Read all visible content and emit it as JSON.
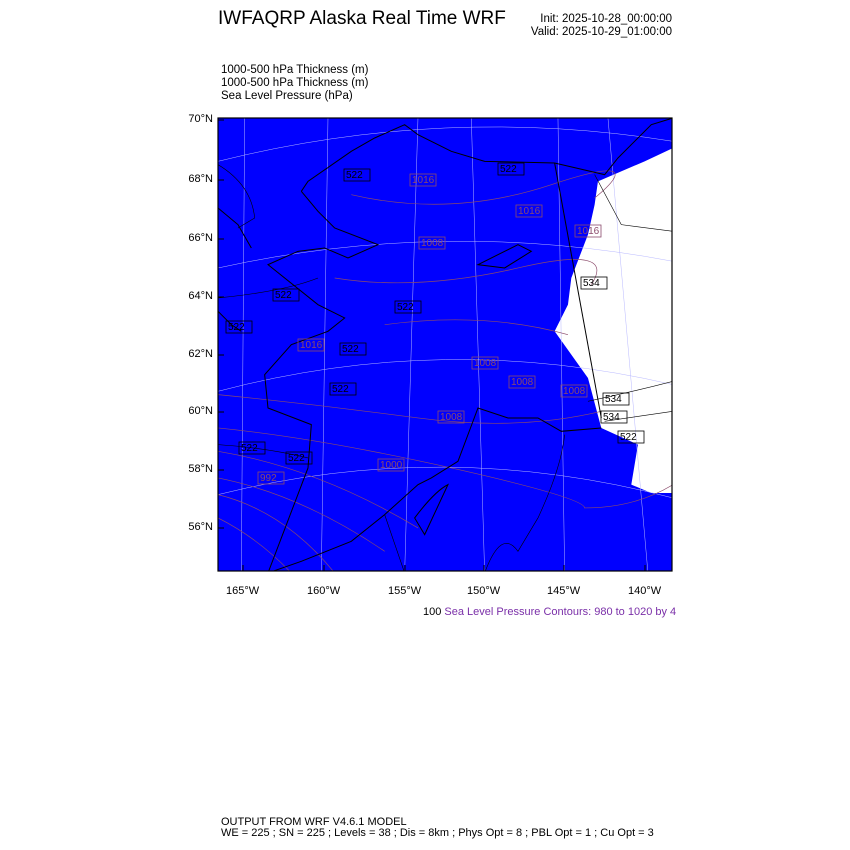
{
  "header": {
    "title": "IWFAQRP Alaska Real Time WRF",
    "init": "Init: 2025-10-28_00:00:00",
    "valid": "Valid: 2025-10-29_01:00:00"
  },
  "fields": [
    "1000-500 hPa Thickness   (m)",
    "1000-500 hPa Thickness   (m)",
    "Sea Level Pressure   (hPa)"
  ],
  "map": {
    "lat_ticks": [
      "70°N",
      "68°N",
      "66°N",
      "64°N",
      "62°N",
      "60°N",
      "58°N",
      "56°N"
    ],
    "lon_ticks": [
      "165°W",
      "160°W",
      "155°W",
      "150°W",
      "145°W",
      "140°W"
    ],
    "colors": {
      "fill": "#0000ff",
      "snow_free": "#ffffff",
      "slp_contour": "#8b4a6b",
      "thickness_contour": "#000000",
      "purple": "#7a2fa8"
    },
    "slp_labels": [
      "1016",
      "1016",
      "1016",
      "1008",
      "1016",
      "1008",
      "1008",
      "1008",
      "1008",
      "1000",
      "992"
    ],
    "thickness_labels": [
      "522",
      "522",
      "522",
      "522",
      "522",
      "522",
      "522",
      "522",
      "522",
      "522",
      "534",
      "534",
      "534"
    ]
  },
  "contour_info": {
    "min_label": "100",
    "text": "Sea Level Pressure Contours: 980 to 1020 by 4"
  },
  "footer": {
    "line1": "OUTPUT FROM WRF V4.6.1 MODEL",
    "line2": "WE = 225 ; SN = 225 ; Levels = 38 ; Dis = 8km ; Phys Opt = 8 ; PBL Opt = 1 ; Cu Opt = 3"
  }
}
